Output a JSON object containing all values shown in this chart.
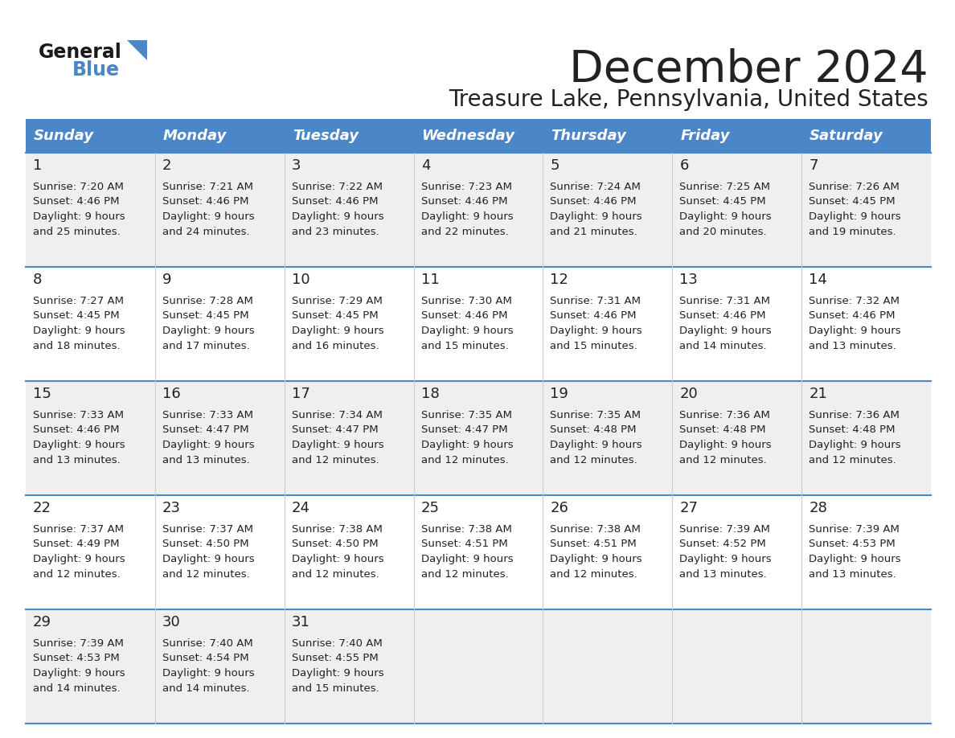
{
  "title": "December 2024",
  "subtitle": "Treasure Lake, Pennsylvania, United States",
  "header_color": "#4a86c8",
  "header_text_color": "#ffffff",
  "cell_bg_odd": "#efefef",
  "cell_bg_even": "#ffffff",
  "day_names": [
    "Sunday",
    "Monday",
    "Tuesday",
    "Wednesday",
    "Thursday",
    "Friday",
    "Saturday"
  ],
  "grid_line_color": "#4a86c8",
  "text_color": "#222222",
  "logo_general_color": "#1a1a1a",
  "logo_blue_color": "#4a86c8",
  "days": [
    {
      "day": 1,
      "col": 0,
      "row": 0,
      "sunrise": "7:20 AM",
      "sunset": "4:46 PM",
      "daylight_h": "9 hours",
      "daylight_m": "25 minutes"
    },
    {
      "day": 2,
      "col": 1,
      "row": 0,
      "sunrise": "7:21 AM",
      "sunset": "4:46 PM",
      "daylight_h": "9 hours",
      "daylight_m": "24 minutes"
    },
    {
      "day": 3,
      "col": 2,
      "row": 0,
      "sunrise": "7:22 AM",
      "sunset": "4:46 PM",
      "daylight_h": "9 hours",
      "daylight_m": "23 minutes"
    },
    {
      "day": 4,
      "col": 3,
      "row": 0,
      "sunrise": "7:23 AM",
      "sunset": "4:46 PM",
      "daylight_h": "9 hours",
      "daylight_m": "22 minutes"
    },
    {
      "day": 5,
      "col": 4,
      "row": 0,
      "sunrise": "7:24 AM",
      "sunset": "4:46 PM",
      "daylight_h": "9 hours",
      "daylight_m": "21 minutes"
    },
    {
      "day": 6,
      "col": 5,
      "row": 0,
      "sunrise": "7:25 AM",
      "sunset": "4:45 PM",
      "daylight_h": "9 hours",
      "daylight_m": "20 minutes"
    },
    {
      "day": 7,
      "col": 6,
      "row": 0,
      "sunrise": "7:26 AM",
      "sunset": "4:45 PM",
      "daylight_h": "9 hours",
      "daylight_m": "19 minutes"
    },
    {
      "day": 8,
      "col": 0,
      "row": 1,
      "sunrise": "7:27 AM",
      "sunset": "4:45 PM",
      "daylight_h": "9 hours",
      "daylight_m": "18 minutes"
    },
    {
      "day": 9,
      "col": 1,
      "row": 1,
      "sunrise": "7:28 AM",
      "sunset": "4:45 PM",
      "daylight_h": "9 hours",
      "daylight_m": "17 minutes"
    },
    {
      "day": 10,
      "col": 2,
      "row": 1,
      "sunrise": "7:29 AM",
      "sunset": "4:45 PM",
      "daylight_h": "9 hours",
      "daylight_m": "16 minutes"
    },
    {
      "day": 11,
      "col": 3,
      "row": 1,
      "sunrise": "7:30 AM",
      "sunset": "4:46 PM",
      "daylight_h": "9 hours",
      "daylight_m": "15 minutes"
    },
    {
      "day": 12,
      "col": 4,
      "row": 1,
      "sunrise": "7:31 AM",
      "sunset": "4:46 PM",
      "daylight_h": "9 hours",
      "daylight_m": "15 minutes"
    },
    {
      "day": 13,
      "col": 5,
      "row": 1,
      "sunrise": "7:31 AM",
      "sunset": "4:46 PM",
      "daylight_h": "9 hours",
      "daylight_m": "14 minutes"
    },
    {
      "day": 14,
      "col": 6,
      "row": 1,
      "sunrise": "7:32 AM",
      "sunset": "4:46 PM",
      "daylight_h": "9 hours",
      "daylight_m": "13 minutes"
    },
    {
      "day": 15,
      "col": 0,
      "row": 2,
      "sunrise": "7:33 AM",
      "sunset": "4:46 PM",
      "daylight_h": "9 hours",
      "daylight_m": "13 minutes"
    },
    {
      "day": 16,
      "col": 1,
      "row": 2,
      "sunrise": "7:33 AM",
      "sunset": "4:47 PM",
      "daylight_h": "9 hours",
      "daylight_m": "13 minutes"
    },
    {
      "day": 17,
      "col": 2,
      "row": 2,
      "sunrise": "7:34 AM",
      "sunset": "4:47 PM",
      "daylight_h": "9 hours",
      "daylight_m": "12 minutes"
    },
    {
      "day": 18,
      "col": 3,
      "row": 2,
      "sunrise": "7:35 AM",
      "sunset": "4:47 PM",
      "daylight_h": "9 hours",
      "daylight_m": "12 minutes"
    },
    {
      "day": 19,
      "col": 4,
      "row": 2,
      "sunrise": "7:35 AM",
      "sunset": "4:48 PM",
      "daylight_h": "9 hours",
      "daylight_m": "12 minutes"
    },
    {
      "day": 20,
      "col": 5,
      "row": 2,
      "sunrise": "7:36 AM",
      "sunset": "4:48 PM",
      "daylight_h": "9 hours",
      "daylight_m": "12 minutes"
    },
    {
      "day": 21,
      "col": 6,
      "row": 2,
      "sunrise": "7:36 AM",
      "sunset": "4:48 PM",
      "daylight_h": "9 hours",
      "daylight_m": "12 minutes"
    },
    {
      "day": 22,
      "col": 0,
      "row": 3,
      "sunrise": "7:37 AM",
      "sunset": "4:49 PM",
      "daylight_h": "9 hours",
      "daylight_m": "12 minutes"
    },
    {
      "day": 23,
      "col": 1,
      "row": 3,
      "sunrise": "7:37 AM",
      "sunset": "4:50 PM",
      "daylight_h": "9 hours",
      "daylight_m": "12 minutes"
    },
    {
      "day": 24,
      "col": 2,
      "row": 3,
      "sunrise": "7:38 AM",
      "sunset": "4:50 PM",
      "daylight_h": "9 hours",
      "daylight_m": "12 minutes"
    },
    {
      "day": 25,
      "col": 3,
      "row": 3,
      "sunrise": "7:38 AM",
      "sunset": "4:51 PM",
      "daylight_h": "9 hours",
      "daylight_m": "12 minutes"
    },
    {
      "day": 26,
      "col": 4,
      "row": 3,
      "sunrise": "7:38 AM",
      "sunset": "4:51 PM",
      "daylight_h": "9 hours",
      "daylight_m": "12 minutes"
    },
    {
      "day": 27,
      "col": 5,
      "row": 3,
      "sunrise": "7:39 AM",
      "sunset": "4:52 PM",
      "daylight_h": "9 hours",
      "daylight_m": "13 minutes"
    },
    {
      "day": 28,
      "col": 6,
      "row": 3,
      "sunrise": "7:39 AM",
      "sunset": "4:53 PM",
      "daylight_h": "9 hours",
      "daylight_m": "13 minutes"
    },
    {
      "day": 29,
      "col": 0,
      "row": 4,
      "sunrise": "7:39 AM",
      "sunset": "4:53 PM",
      "daylight_h": "9 hours",
      "daylight_m": "14 minutes"
    },
    {
      "day": 30,
      "col": 1,
      "row": 4,
      "sunrise": "7:40 AM",
      "sunset": "4:54 PM",
      "daylight_h": "9 hours",
      "daylight_m": "14 minutes"
    },
    {
      "day": 31,
      "col": 2,
      "row": 4,
      "sunrise": "7:40 AM",
      "sunset": "4:55 PM",
      "daylight_h": "9 hours",
      "daylight_m": "15 minutes"
    }
  ]
}
